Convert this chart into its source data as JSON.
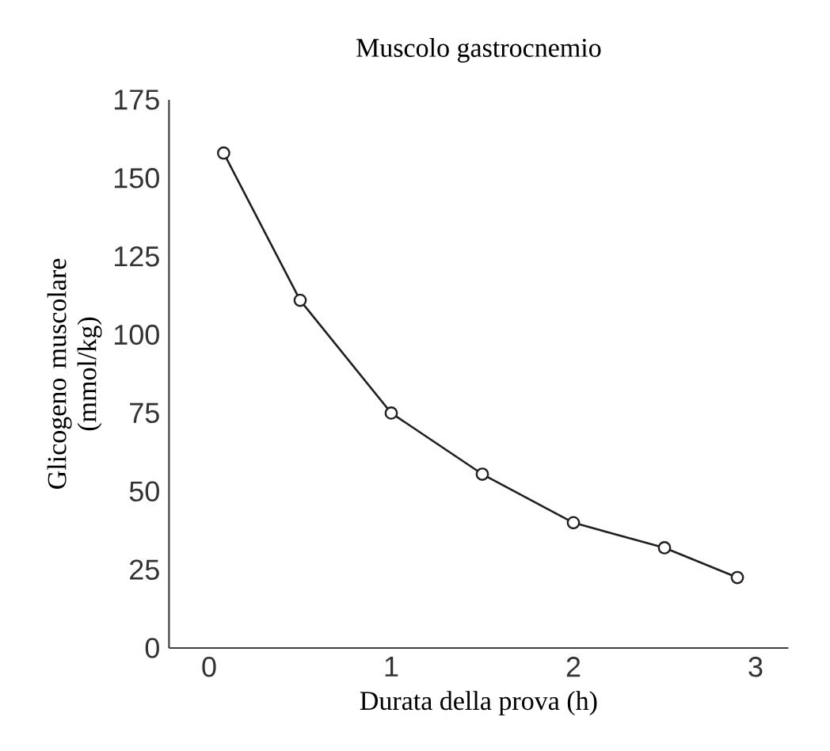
{
  "chart_data": {
    "type": "line",
    "title": "Muscolo gastrocnemio",
    "xlabel": "Durata della prova (h)",
    "ylabel": "Glicogeno muscolare (mmol/kg)",
    "x": [
      0.08,
      0.5,
      1.0,
      1.5,
      2.0,
      2.5,
      2.9
    ],
    "series": [
      {
        "color": "#231f20",
        "values": [
          158,
          111,
          75,
          55.5,
          40,
          32,
          22.5
        ]
      }
    ],
    "xlim": [
      -0.22,
      3.18
    ],
    "ylim": [
      0,
      175
    ],
    "xticks": [
      0,
      1,
      2,
      3
    ],
    "yticks": [
      0,
      25,
      50,
      75,
      100,
      125,
      150,
      175
    ],
    "grid": false,
    "marker": "circle",
    "line_style": "solid"
  }
}
